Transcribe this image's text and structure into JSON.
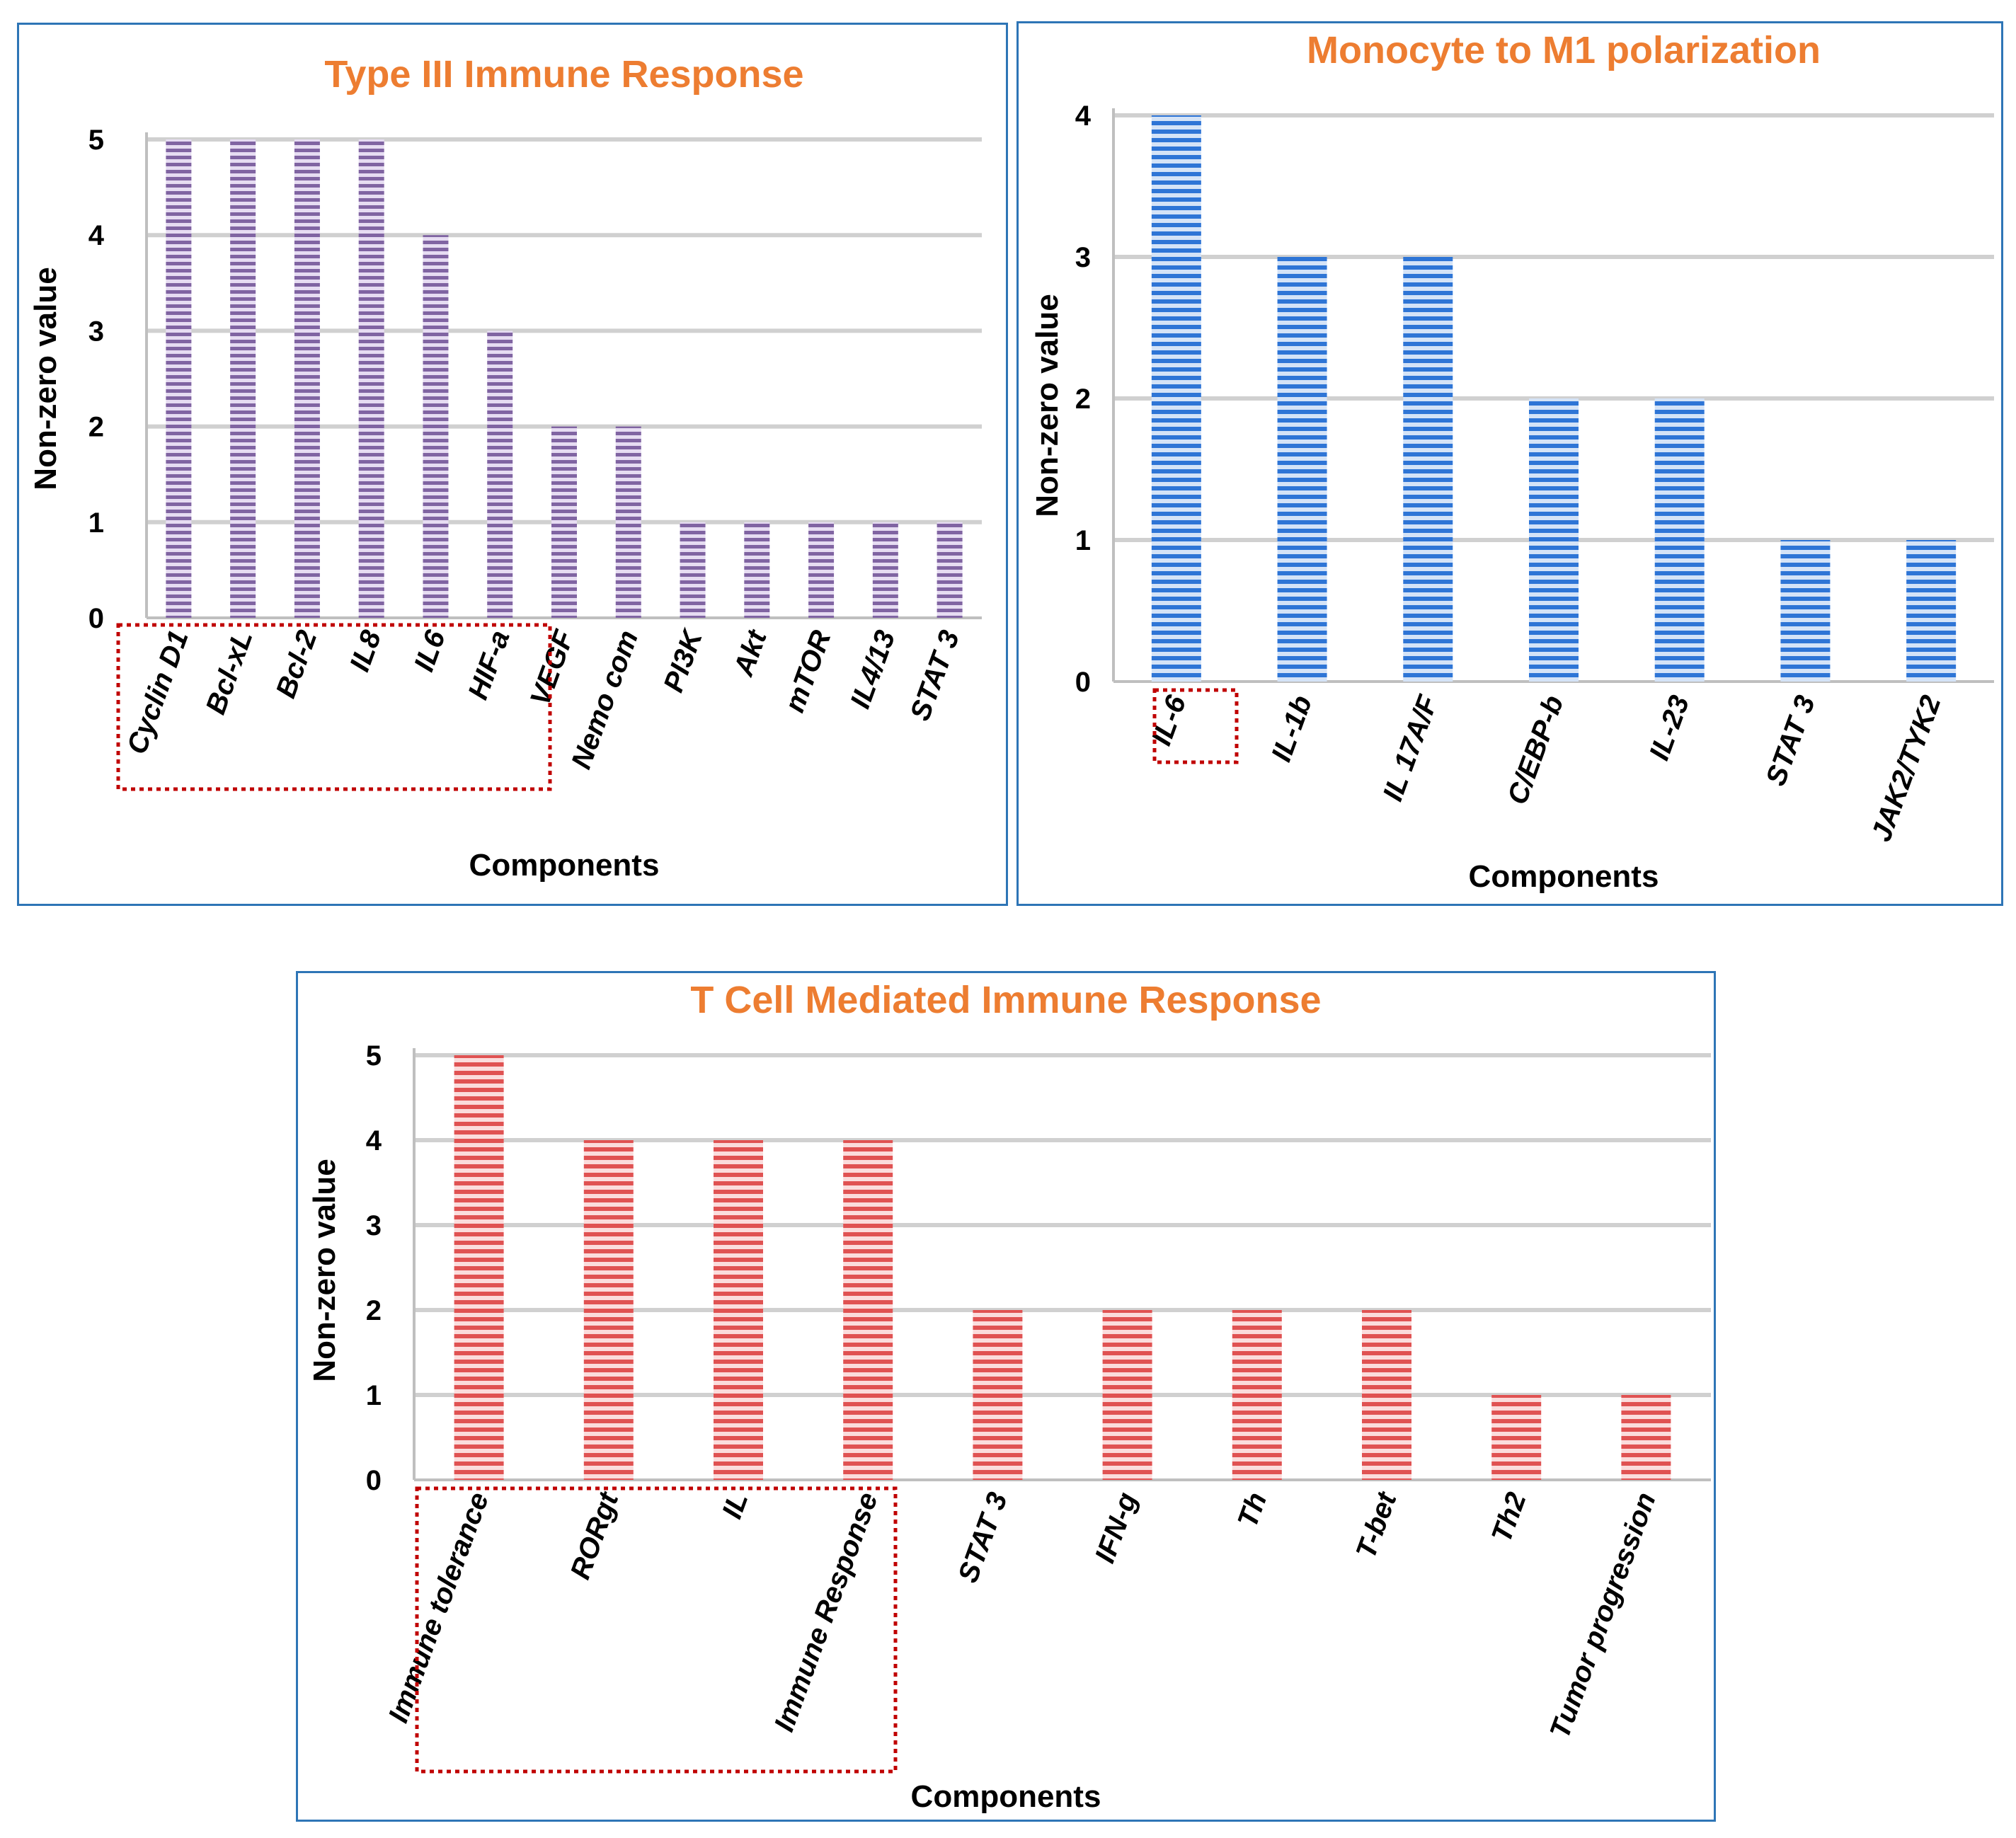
{
  "chart_data": [
    {
      "type": "bar",
      "title": "Type III Immune Response",
      "xlabel": "Components",
      "ylabel": "Non-zero value",
      "ylim": [
        0,
        5
      ],
      "yticks": [
        0,
        1,
        2,
        3,
        4,
        5
      ],
      "grid": true,
      "categories": [
        "Cyclin D1",
        "Bcl-xL",
        "Bcl-2",
        "IL8",
        "IL6",
        "HIF-a",
        "VEGF",
        "Nemo com",
        "PI3K",
        "Akt",
        "mTOR",
        "IL4/13",
        "STAT 3"
      ],
      "values": [
        5,
        5,
        5,
        5,
        4,
        3,
        2,
        2,
        1,
        1,
        1,
        1,
        1
      ],
      "highlighted_categories": [
        "Cyclin D1",
        "Bcl-xL",
        "Bcl-2",
        "IL8",
        "IL6"
      ],
      "bar_color": "#8064a2",
      "bar_color_light": "#e6dcf2"
    },
    {
      "type": "bar",
      "title": "Monocyte to M1 polarization",
      "xlabel": "Components",
      "ylabel": "Non-zero value",
      "ylim": [
        0,
        4
      ],
      "yticks": [
        0,
        1,
        2,
        3,
        4
      ],
      "grid": true,
      "categories": [
        "IL-6",
        "IL-1b",
        "IL 17A/F",
        "C/EBP-b",
        "IL-23",
        "STAT 3",
        "JAK2/TYK2"
      ],
      "values": [
        4,
        3,
        3,
        2,
        2,
        1,
        1
      ],
      "highlighted_categories": [
        "IL-6"
      ],
      "bar_color": "#2e75d6",
      "bar_color_light": "#d4e3f7"
    },
    {
      "type": "bar",
      "title": "T Cell Mediated Immune Response",
      "xlabel": "Components",
      "ylabel": "Non-zero value",
      "ylim": [
        0,
        5
      ],
      "yticks": [
        0,
        1,
        2,
        3,
        4,
        5
      ],
      "grid": true,
      "categories": [
        "Immune tolerance",
        "RORgt",
        "IL",
        "Immune Response",
        "STAT 3",
        "IFN-g",
        "Th",
        "T-bet",
        "Th2",
        "Tumor progression"
      ],
      "values": [
        5,
        4,
        4,
        4,
        2,
        2,
        2,
        2,
        1,
        1
      ],
      "highlighted_categories": [
        "Immune tolerance",
        "RORgt",
        "IL",
        "Immune Response"
      ],
      "bar_color": "#e05252",
      "bar_color_light": "#fbdcdc"
    }
  ]
}
